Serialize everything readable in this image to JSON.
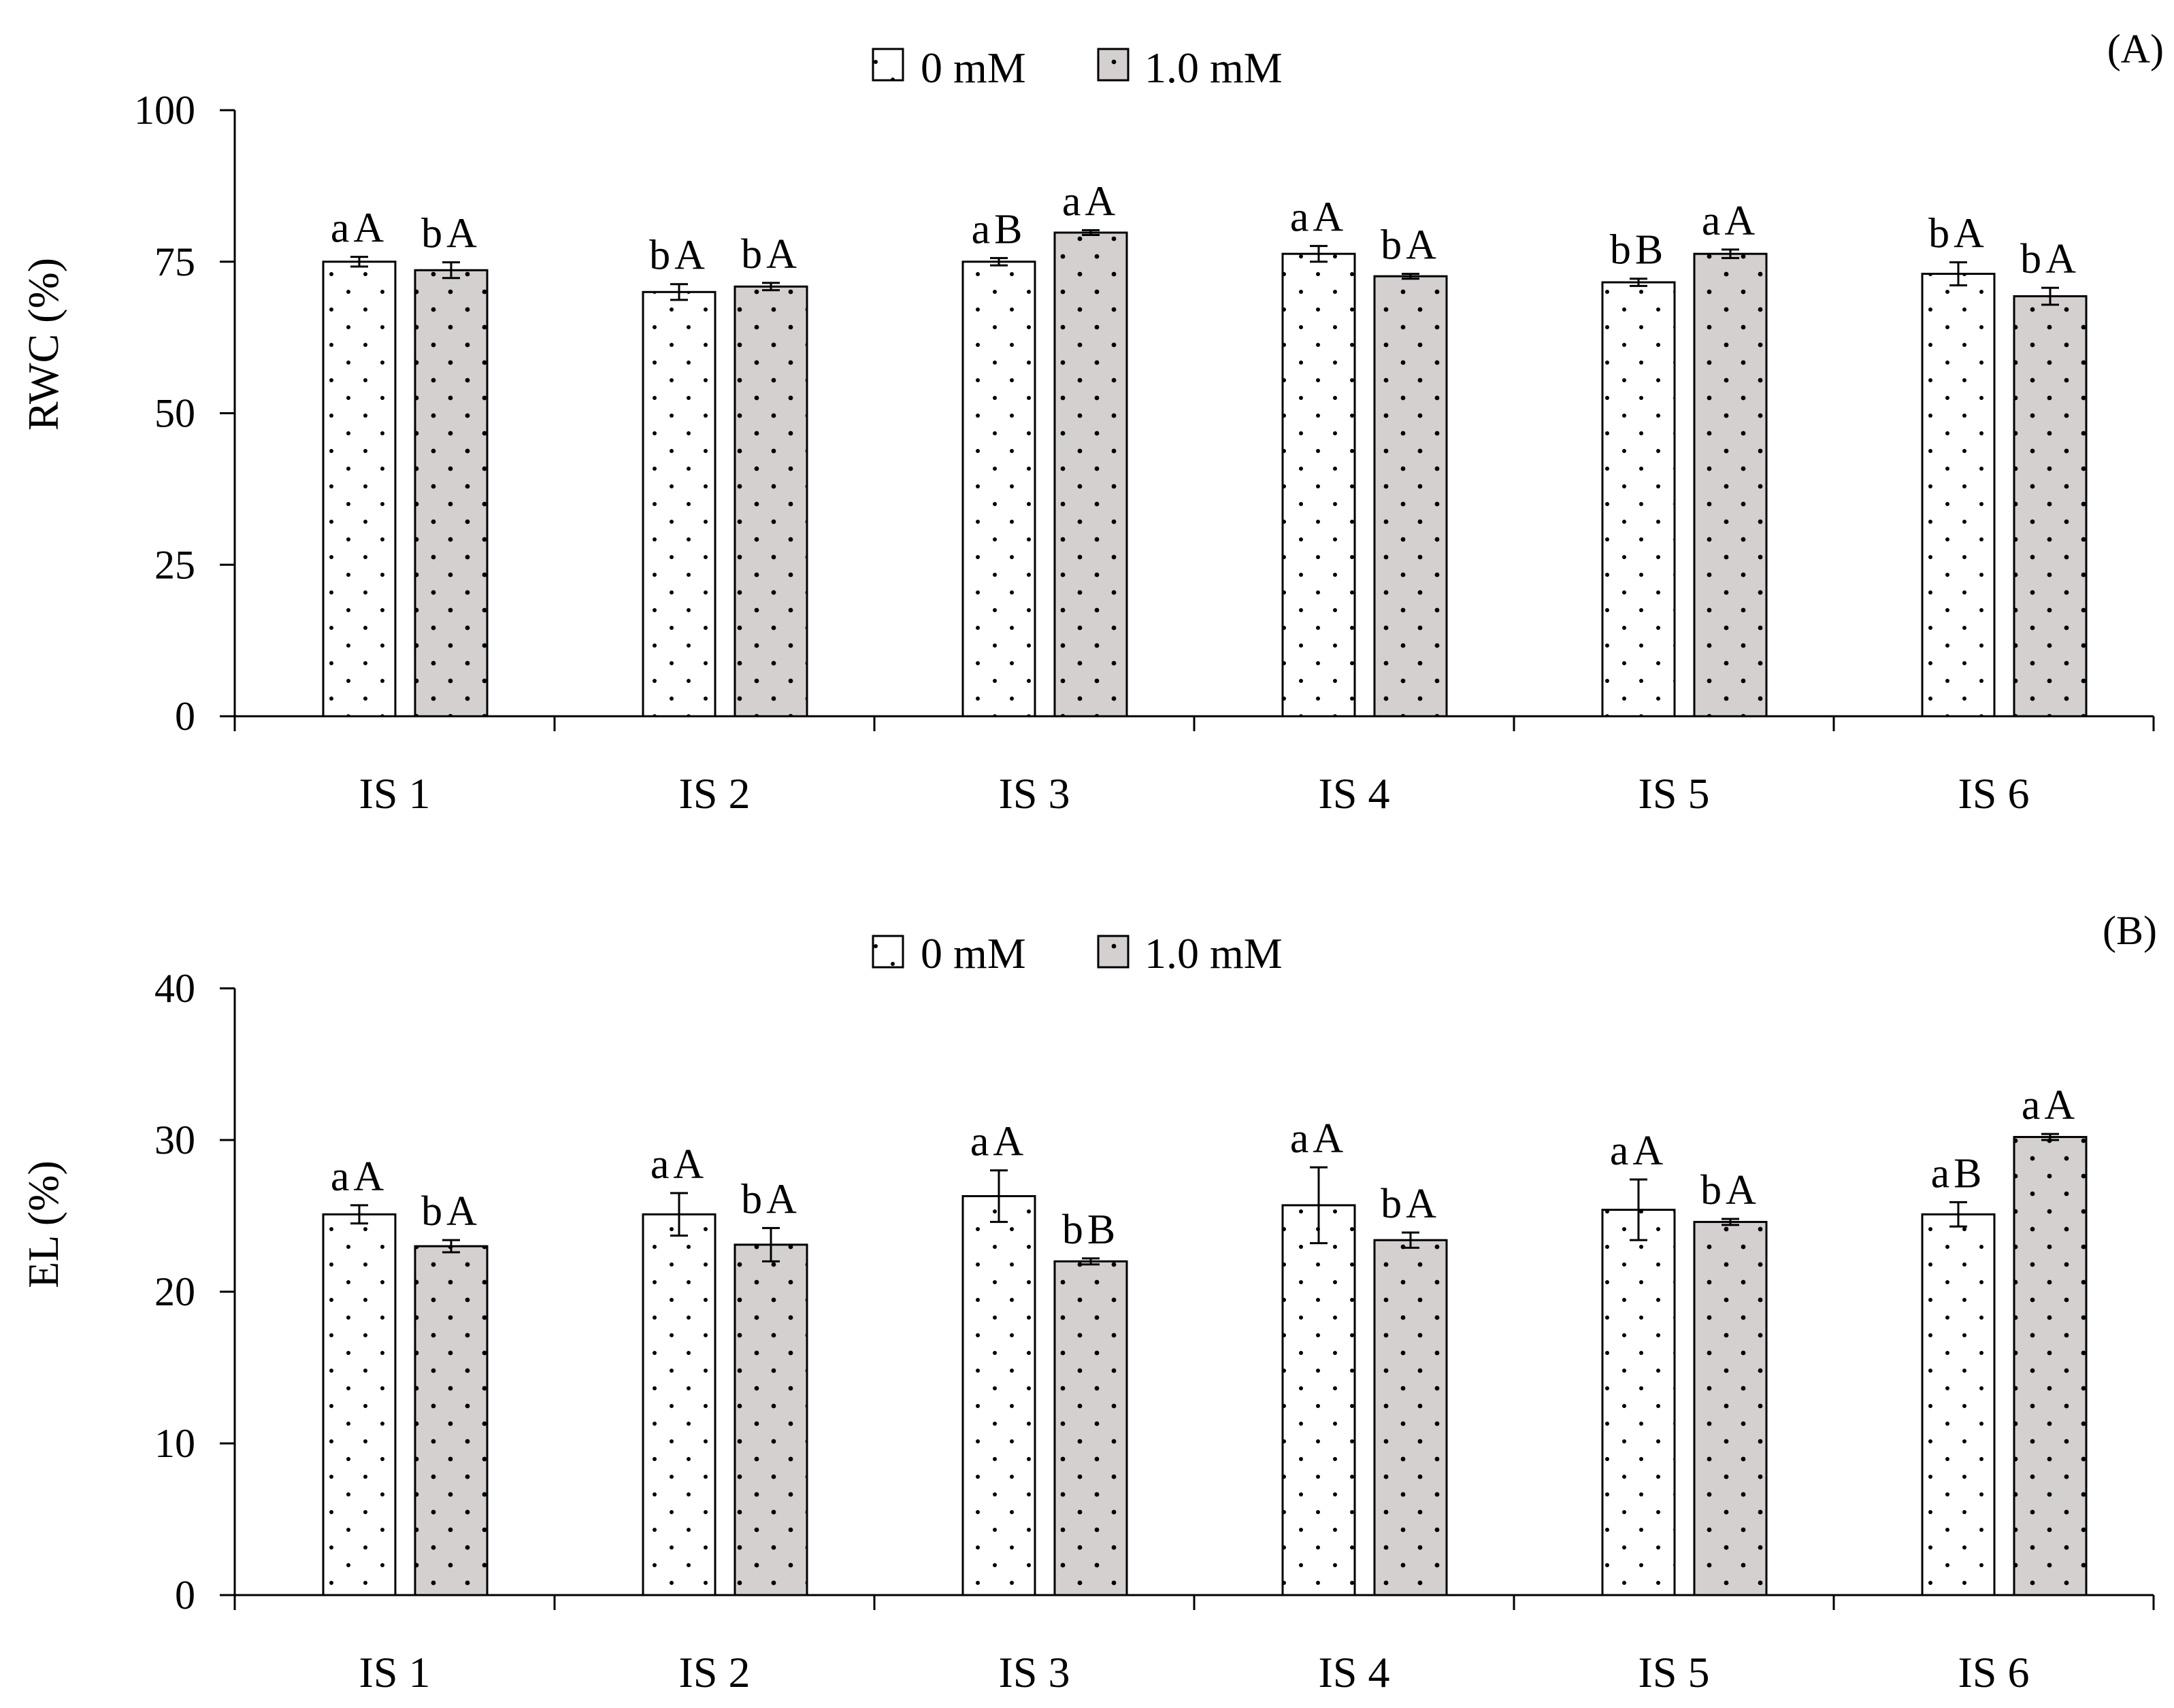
{
  "colors": {
    "series_0mM_fill": "#ffffff",
    "series_1mM_fill": "#d4d0d0",
    "stroke": "#000000",
    "dots": "#000000"
  },
  "chart_data": [
    {
      "type": "bar",
      "panel_label": "(A)",
      "ylabel": "RWC (%)",
      "xlabel": "",
      "ylim": [
        0,
        100
      ],
      "yticks": [
        "0",
        "25",
        "50",
        "75",
        "100"
      ],
      "categories": [
        "IS 1",
        "IS 2",
        "IS 3",
        "IS 4",
        "IS 5",
        "IS 6"
      ],
      "legend_position": "top-center",
      "series": [
        {
          "name": "0 mM",
          "values": [
            75.0,
            70.0,
            75.0,
            76.3,
            71.6,
            73.0
          ],
          "errors": [
            0.8,
            1.3,
            0.6,
            1.3,
            0.6,
            1.9
          ],
          "letters": [
            "aA",
            "bA",
            "aB",
            "aA",
            "bB",
            "bA"
          ]
        },
        {
          "name": "1.0 mM",
          "values": [
            73.6,
            70.9,
            79.8,
            72.6,
            76.3,
            69.3
          ],
          "errors": [
            1.3,
            0.6,
            0.4,
            0.4,
            0.7,
            1.4
          ],
          "letters": [
            "bA",
            "bA",
            "aA",
            "bA",
            "aA",
            "bA"
          ]
        }
      ]
    },
    {
      "type": "bar",
      "panel_label": "(B)",
      "ylabel": "EL (%)",
      "xlabel": "",
      "ylim": [
        0,
        40
      ],
      "yticks": [
        "0",
        "10",
        "20",
        "30",
        "40"
      ],
      "categories": [
        "IS 1",
        "IS 2",
        "IS 3",
        "IS 4",
        "IS 5",
        "IS 6"
      ],
      "legend_position": "top-center",
      "series": [
        {
          "name": "0 mM",
          "values": [
            25.1,
            25.1,
            26.3,
            25.7,
            25.4,
            25.1
          ],
          "errors": [
            0.6,
            1.4,
            1.7,
            2.5,
            2.0,
            0.8
          ],
          "letters": [
            "aA",
            "aA",
            "aA",
            "aA",
            "aA",
            "aB"
          ]
        },
        {
          "name": "1.0 mM",
          "values": [
            23.0,
            23.1,
            22.0,
            23.4,
            24.6,
            30.2
          ],
          "errors": [
            0.4,
            1.1,
            0.2,
            0.5,
            0.2,
            0.2
          ],
          "letters": [
            "bA",
            "bA",
            "bB",
            "bA",
            "bA",
            "aA"
          ]
        }
      ]
    }
  ]
}
